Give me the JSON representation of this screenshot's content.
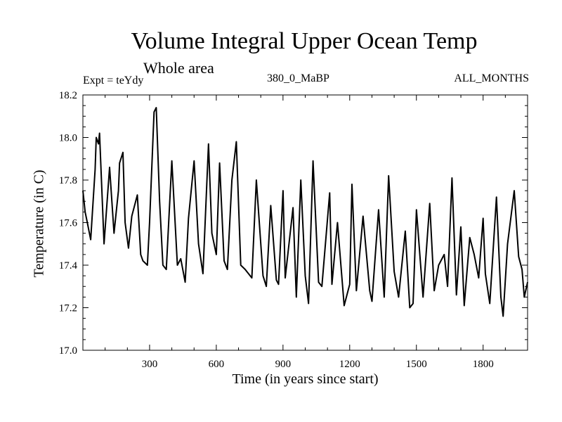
{
  "chart_data": {
    "type": "line",
    "title": "Volume Integral Upper Ocean Temp",
    "subtitle": "Whole area",
    "experiment_label": "Expt = teYdy",
    "period_label": "380_0_MaBP",
    "season_label": "ALL_MONTHS",
    "xlabel": "Time (in years since start)",
    "ylabel": "Temperature (in C)",
    "xlim": [
      0,
      2000
    ],
    "ylim": [
      17.0,
      18.2
    ],
    "xticks": [
      300,
      600,
      900,
      1200,
      1500,
      1800
    ],
    "xtick_labels": [
      "300",
      "600",
      "900",
      "1200",
      "1500",
      "1800"
    ],
    "yticks": [
      17.0,
      17.2,
      17.4,
      17.6,
      17.8,
      18.0,
      18.2
    ],
    "ytick_labels": [
      "17.0",
      "17.2",
      "17.4",
      "17.6",
      "17.8",
      "18.0",
      "18.2"
    ],
    "series": [
      {
        "name": "Volume integral upper ocean temperature",
        "color": "#000000",
        "x": [
          0,
          10,
          20,
          35,
          55,
          60,
          70,
          75,
          95,
          120,
          140,
          160,
          165,
          180,
          190,
          205,
          220,
          245,
          260,
          270,
          290,
          300,
          320,
          330,
          345,
          360,
          375,
          400,
          425,
          440,
          460,
          475,
          500,
          520,
          540,
          565,
          580,
          600,
          615,
          635,
          650,
          670,
          690,
          710,
          730,
          760,
          780,
          810,
          825,
          845,
          870,
          880,
          900,
          910,
          945,
          960,
          980,
          1000,
          1015,
          1035,
          1060,
          1075,
          1110,
          1120,
          1145,
          1175,
          1200,
          1210,
          1230,
          1260,
          1290,
          1300,
          1330,
          1355,
          1375,
          1400,
          1420,
          1450,
          1470,
          1485,
          1500,
          1530,
          1560,
          1580,
          1600,
          1625,
          1640,
          1660,
          1680,
          1700,
          1715,
          1740,
          1760,
          1780,
          1800,
          1810,
          1830,
          1860,
          1880,
          1890,
          1910,
          1940,
          1960,
          1975,
          1985,
          2000
        ],
        "y": [
          17.75,
          17.65,
          17.6,
          17.52,
          17.85,
          18.0,
          17.97,
          18.02,
          17.5,
          17.86,
          17.55,
          17.75,
          17.88,
          17.93,
          17.6,
          17.48,
          17.63,
          17.73,
          17.45,
          17.42,
          17.4,
          17.6,
          18.12,
          18.14,
          17.7,
          17.4,
          17.38,
          17.89,
          17.4,
          17.43,
          17.32,
          17.62,
          17.89,
          17.5,
          17.36,
          17.97,
          17.55,
          17.45,
          17.88,
          17.42,
          17.38,
          17.8,
          17.98,
          17.4,
          17.38,
          17.34,
          17.8,
          17.35,
          17.3,
          17.68,
          17.33,
          17.31,
          17.75,
          17.34,
          17.67,
          17.25,
          17.8,
          17.35,
          17.22,
          17.89,
          17.32,
          17.3,
          17.74,
          17.31,
          17.6,
          17.21,
          17.31,
          17.78,
          17.28,
          17.63,
          17.28,
          17.23,
          17.66,
          17.25,
          17.82,
          17.37,
          17.25,
          17.56,
          17.2,
          17.22,
          17.66,
          17.25,
          17.69,
          17.28,
          17.4,
          17.45,
          17.3,
          17.81,
          17.26,
          17.58,
          17.21,
          17.53,
          17.45,
          17.34,
          17.62,
          17.36,
          17.22,
          17.72,
          17.25,
          17.16,
          17.5,
          17.75,
          17.44,
          17.38,
          17.25,
          17.32
        ]
      }
    ]
  }
}
